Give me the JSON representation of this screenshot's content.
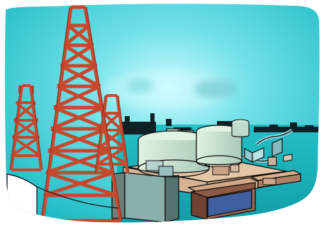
{
  "image": {
    "kind": "clipart-illustration",
    "subject": "oil-field-and-refinery",
    "colors": {
      "sky": "#26c6cc",
      "sky_light": "#bff7fb",
      "sea": "#1bb5ba",
      "derrick": "#c8482e",
      "tank": "#cfe7d0",
      "tank_dark": "#9fbfae",
      "ground": "#c49a79",
      "ground_dark": "#8d5b45",
      "pipe": "#9ad2da",
      "outline": "#0d0d0d",
      "pool": "#3c5c9a",
      "dock": "#d7b08d"
    }
  }
}
